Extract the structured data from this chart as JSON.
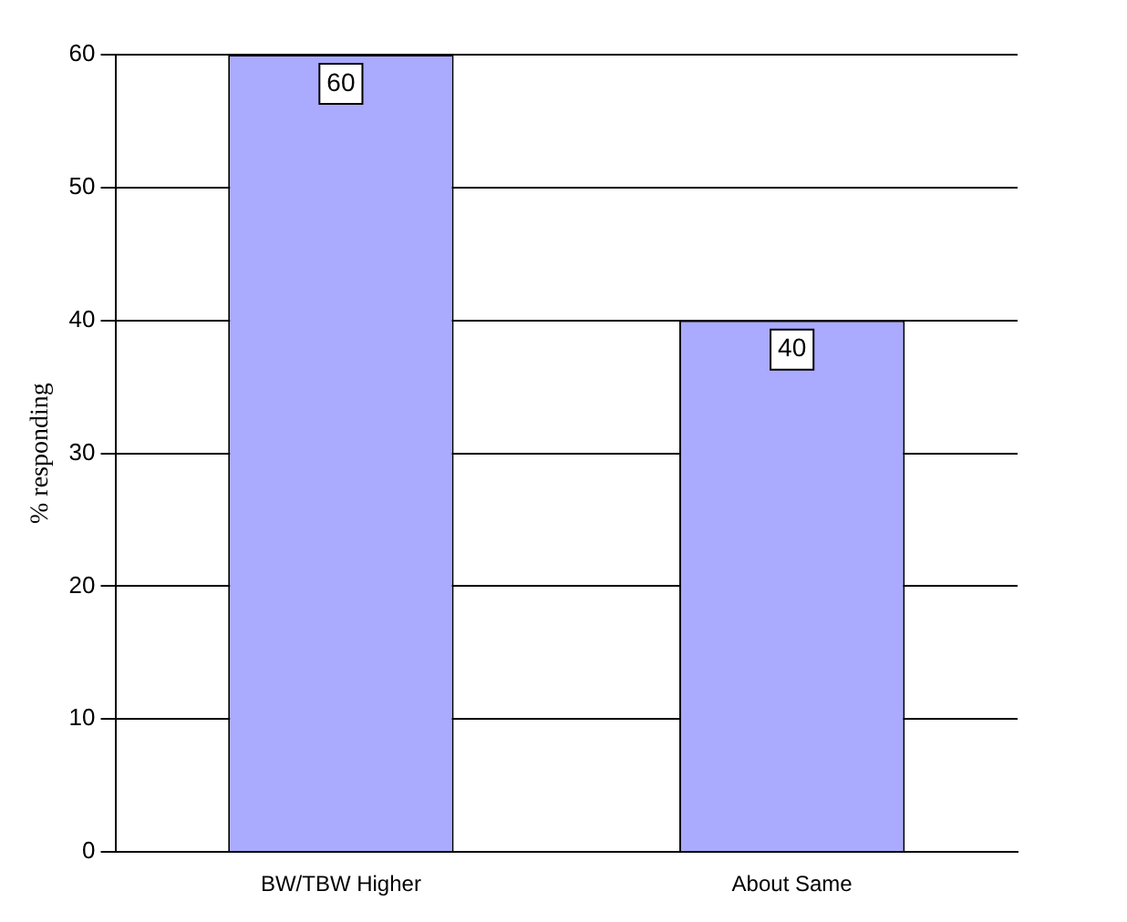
{
  "chart_data": {
    "type": "bar",
    "ylabel": "% responding",
    "categories": [
      "BW/TBW Higher",
      "About Same"
    ],
    "values": [
      60,
      40
    ],
    "color": "#aaaaff",
    "ylim": [
      0,
      60
    ],
    "yticks": [
      0,
      10,
      20,
      30,
      40,
      50,
      60
    ],
    "grid": "y",
    "legend": false,
    "data_labels": true
  }
}
